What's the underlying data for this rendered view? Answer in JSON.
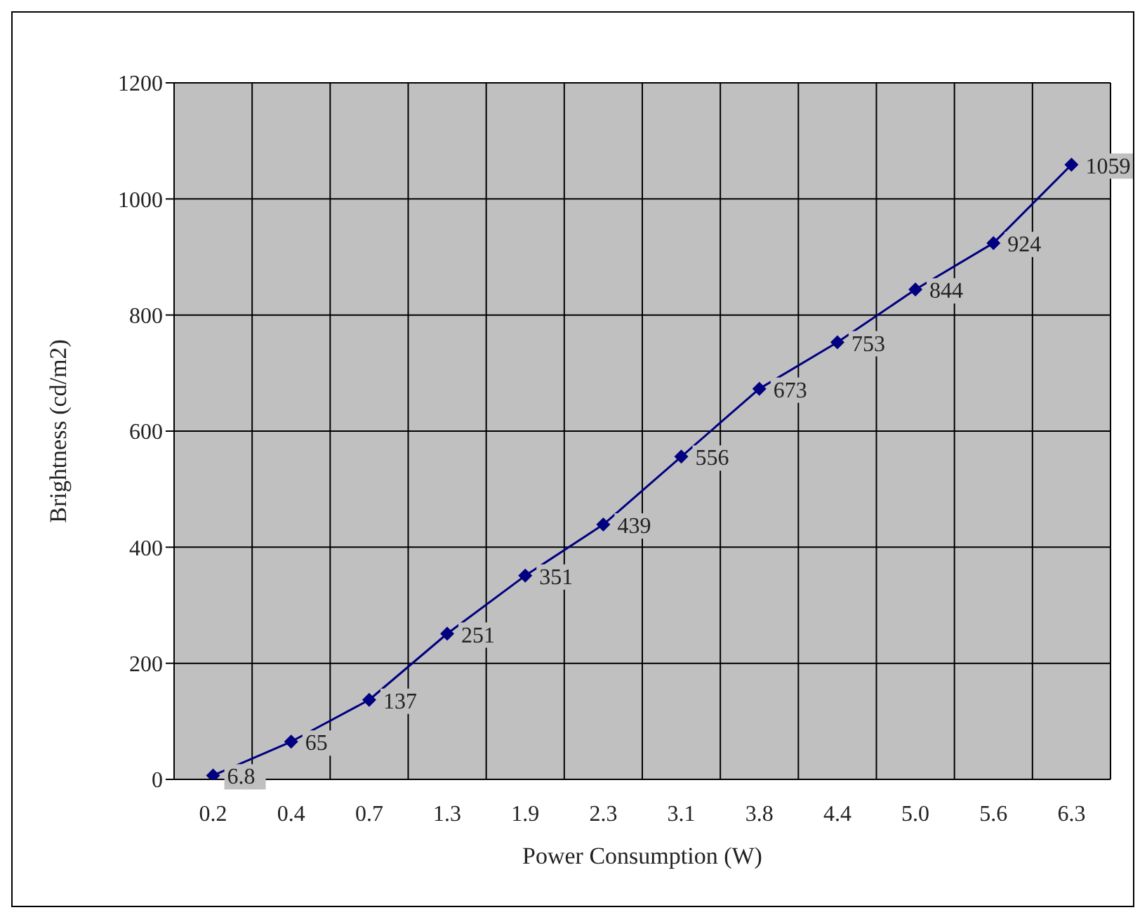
{
  "chart_data": {
    "type": "line",
    "xlabel": "Power Consumption (W)",
    "ylabel": "Brightness (cd/m2)",
    "categories": [
      "0.2",
      "0.4",
      "0.7",
      "1.3",
      "1.9",
      "2.3",
      "3.1",
      "3.8",
      "4.4",
      "5.0",
      "5.6",
      "6.3"
    ],
    "series": [
      {
        "color": "#000080",
        "values": [
          6.8,
          65,
          137,
          251,
          351,
          439,
          556,
          673,
          753,
          844,
          924,
          1059
        ]
      }
    ],
    "ylim": [
      0,
      1200
    ],
    "yticks": [
      0,
      200,
      400,
      600,
      800,
      1000,
      1200
    ],
    "grid": true,
    "legend": false,
    "marker": "diamond",
    "line_style": "solid",
    "data_labels": true
  }
}
